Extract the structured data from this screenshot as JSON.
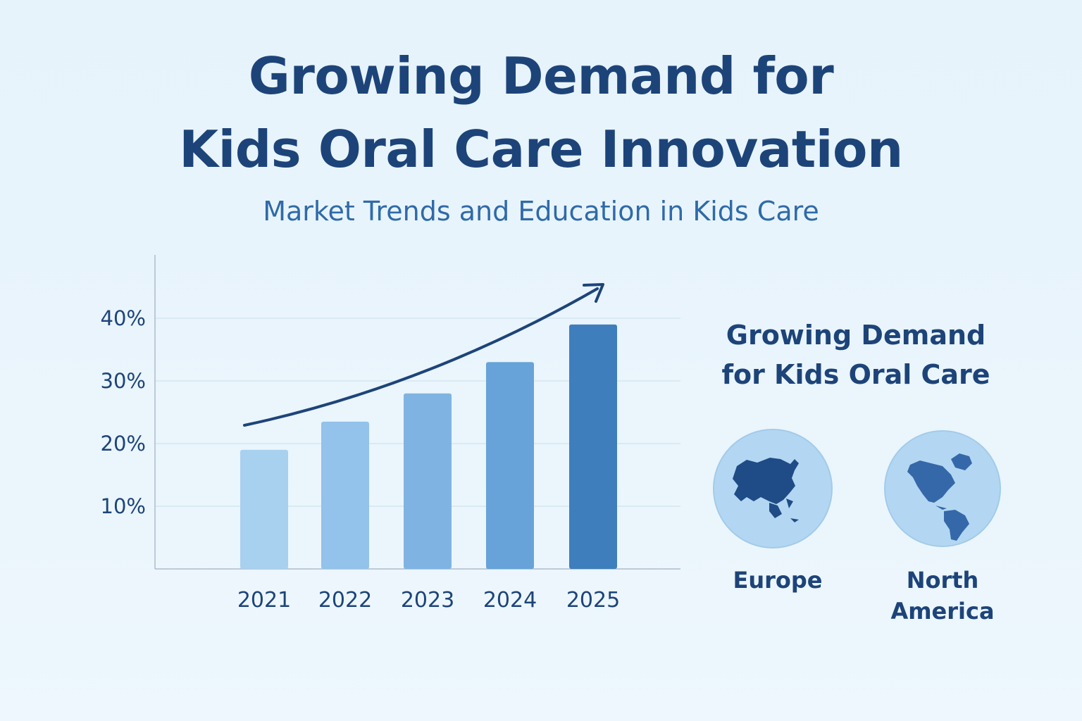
{
  "header": {
    "title_line1": "Growing Demand for",
    "title_line2": "Kids Oral Care Innovation",
    "subtitle": "Market Trends and Education in Kids Care"
  },
  "chart_data": {
    "type": "bar",
    "categories": [
      "2021",
      "2022",
      "2023",
      "2024",
      "2025"
    ],
    "values": [
      19,
      23.5,
      28,
      33,
      39
    ],
    "y_ticks": [
      "10%",
      "20%",
      "30%",
      "40%"
    ],
    "ylim": [
      0,
      48
    ],
    "grid": true,
    "trend_arrow": "up",
    "bar_colors": [
      "#a8d0ef",
      "#93c2ea",
      "#7fb4e2",
      "#67a3d8",
      "#3f7ebd"
    ]
  },
  "side_panel": {
    "title_line1": "Growing Demand",
    "title_line2": "for Kids Oral Care",
    "regions": [
      {
        "label": "Europe",
        "icon": "globe-asia-europe-icon"
      },
      {
        "label_line1": "North",
        "label_line2": "America",
        "icon": "globe-americas-icon"
      }
    ]
  },
  "colors": {
    "title": "#1d4479",
    "subtitle": "#2f6aa8",
    "globe_bg": "#b3d7f2",
    "land_dark": "#1f4c86",
    "land_mid": "#3568a8"
  }
}
